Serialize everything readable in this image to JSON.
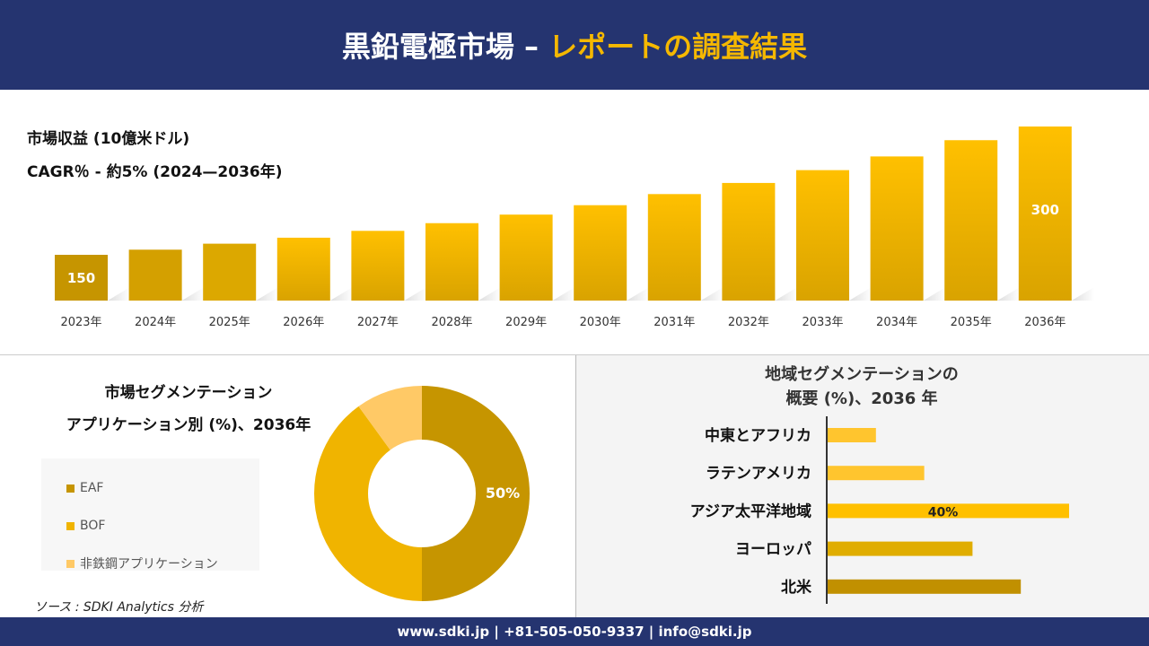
{
  "header": {
    "title_main": "黒鉛電極市場 –",
    "title_accent": "レポートの調査結果"
  },
  "revenue": {
    "title": "市場収益 (10億米ドル)",
    "cagr": "CAGR％ - 約5% (2024—2036年)"
  },
  "colors": {
    "navy": "#253470",
    "gold_dark": "#c69500",
    "gold": "#f0b400",
    "gold_light": "#ffc94d"
  },
  "chart_data": [
    {
      "type": "bar",
      "categories": [
        "2023年",
        "2024年",
        "2025年",
        "2026年",
        "2027年",
        "2028年",
        "2029年",
        "2030年",
        "2031年",
        "2032年",
        "2033年",
        "2034年",
        "2035年",
        "2036年"
      ],
      "values": [
        150,
        156,
        163,
        170,
        178,
        187,
        197,
        208,
        221,
        234,
        249,
        265,
        284,
        300
      ],
      "data_labels": {
        "0": "150",
        "13": "300"
      },
      "grid": false
    },
    {
      "type": "pie",
      "variant": "donut",
      "title": "市場セグメンテーション",
      "subtitle": "アプリケーション別 (%)、2036年",
      "labels": [
        "EAF",
        "BOF",
        "非鉄鋼アプリケーション"
      ],
      "values": [
        50,
        40,
        10
      ],
      "colors": [
        "#c69500",
        "#f0b400",
        "#ffc966"
      ],
      "data_labels": {
        "0": "50%"
      },
      "legend": "left"
    },
    {
      "type": "bar",
      "orientation": "horizontal",
      "title": "地域セグメンテーションの",
      "subtitle": "概要 (%)、2036 年",
      "categories": [
        "中東とアフリカ",
        "ラテンアメリカ",
        "アジア太平洋地域",
        "ヨーロッパ",
        "北米"
      ],
      "values": [
        8,
        16,
        40,
        24,
        32
      ],
      "colors": [
        "#ffc52e",
        "#ffc52e",
        "#ffc000",
        "#e0ad00",
        "#c19000"
      ],
      "data_labels": {
        "2": "40%"
      }
    }
  ],
  "source": "ソース : SDKI Analytics 分析",
  "footer": "www.sdki.jp | +81-505-050-9337 | info@sdki.jp"
}
